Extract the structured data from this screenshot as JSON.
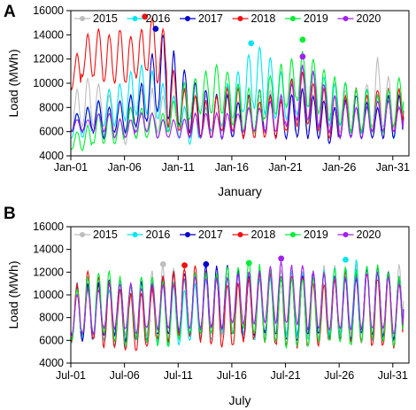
{
  "figure": {
    "colors": {
      "2015": "#bebebe",
      "2016": "#00e5ee",
      "2017": "#0000cd",
      "2018": "#ee1111",
      "2019": "#00ee33",
      "2020": "#a020f0"
    }
  },
  "chart_data": [
    {
      "type": "line",
      "panel_label": "A",
      "title": "",
      "xlabel": "January",
      "ylabel": "Load (MWh)",
      "xlim": [
        0,
        31.5
      ],
      "ylim": [
        4000,
        16000
      ],
      "x_ticks": [
        {
          "value": 0,
          "label": "Jan-01"
        },
        {
          "value": 5,
          "label": "Jan-06"
        },
        {
          "value": 10,
          "label": "Jan-11"
        },
        {
          "value": 15,
          "label": "Jan-16"
        },
        {
          "value": 20,
          "label": "Jan-21"
        },
        {
          "value": 25,
          "label": "Jan-26"
        },
        {
          "value": 30,
          "label": "Jan-31"
        }
      ],
      "y_ticks": [
        4000,
        6000,
        8000,
        10000,
        12000,
        14000,
        16000
      ],
      "grid": false,
      "legend": "top",
      "x_unit": "days since Jan-01 00:00",
      "series": [
        {
          "name": "2015",
          "color_key": "2015",
          "daily_max": [
            9500,
            10500,
            10000,
            9000,
            8500,
            9000,
            9500,
            9500,
            9000,
            9000,
            9500,
            9000,
            9000,
            9000,
            9000,
            8500,
            8500,
            9000,
            9500,
            9000,
            10000,
            9500,
            9000,
            9500,
            10000,
            9500,
            9500,
            10000,
            12000,
            10500,
            9500
          ],
          "daily_min": [
            6000,
            6500,
            6500,
            6000,
            5500,
            5000,
            5500,
            6000,
            6000,
            6000,
            6000,
            5500,
            5500,
            6000,
            6000,
            5500,
            5500,
            6000,
            6000,
            6000,
            6000,
            6000,
            6000,
            6000,
            6500,
            6000,
            6000,
            6000,
            6500,
            6500,
            6000
          ],
          "peak": {
            "x": null,
            "y": null
          }
        },
        {
          "name": "2016",
          "color_key": "2016",
          "daily_max": [
            7500,
            8000,
            8500,
            9500,
            10000,
            11000,
            11500,
            11000,
            10000,
            9000,
            8000,
            7500,
            8000,
            9000,
            10000,
            11000,
            12500,
            13000,
            12000,
            11000,
            10500,
            11500,
            11000,
            10500,
            10000,
            10000,
            9500,
            9500,
            9000,
            9500,
            9000
          ],
          "daily_min": [
            5500,
            5500,
            6000,
            6500,
            6500,
            7000,
            7500,
            7500,
            7000,
            6000,
            5500,
            5000,
            5500,
            6000,
            6500,
            7000,
            7500,
            8000,
            7500,
            7000,
            7000,
            7500,
            7000,
            6500,
            6500,
            6500,
            6000,
            6000,
            6000,
            6000,
            5500
          ],
          "peak": {
            "x": 16.8,
            "y": 13300
          }
        },
        {
          "name": "2017",
          "color_key": "2017",
          "daily_max": [
            7500,
            8000,
            8500,
            8000,
            8500,
            9000,
            10000,
            12500,
            14000,
            12500,
            11000,
            10000,
            9500,
            9000,
            9000,
            8500,
            9000,
            9500,
            9000,
            8500,
            9000,
            9500,
            9000,
            8500,
            8000,
            8500,
            9000,
            8500,
            8000,
            9000,
            9000
          ],
          "daily_min": [
            6000,
            6000,
            6000,
            5500,
            6000,
            6000,
            6500,
            7000,
            7500,
            7000,
            6500,
            6000,
            5500,
            5500,
            5500,
            5500,
            5500,
            6000,
            6000,
            5500,
            5500,
            5500,
            5500,
            5500,
            5000,
            5500,
            5500,
            5500,
            5500,
            5500,
            5500
          ],
          "peak": {
            "x": 7.9,
            "y": 14500
          }
        },
        {
          "name": "2018",
          "color_key": "2018",
          "daily_max": [
            12500,
            14000,
            14500,
            14000,
            14500,
            14000,
            14500,
            15500,
            14500,
            11000,
            9500,
            9000,
            8500,
            9000,
            9500,
            9500,
            9000,
            8500,
            9000,
            8500,
            10500,
            11000,
            10000,
            9500,
            9000,
            9000,
            9500,
            9000,
            9500,
            9500,
            9500
          ],
          "daily_min": [
            9500,
            10500,
            10500,
            10000,
            10000,
            10000,
            10500,
            11000,
            10000,
            6500,
            6000,
            5500,
            5500,
            5500,
            6000,
            6000,
            5500,
            5500,
            5500,
            5500,
            6000,
            6500,
            6500,
            6000,
            5500,
            5500,
            6000,
            6000,
            6000,
            6000,
            6000
          ],
          "peak": {
            "x": 6.9,
            "y": 15500
          }
        },
        {
          "name": "2019",
          "color_key": "2019",
          "daily_max": [
            6000,
            6500,
            7500,
            7500,
            7000,
            8000,
            8000,
            7500,
            7500,
            8500,
            10000,
            10500,
            11000,
            11500,
            11000,
            10000,
            9500,
            9500,
            10500,
            11500,
            12000,
            12500,
            12000,
            11000,
            10500,
            10000,
            9500,
            9500,
            9000,
            9500,
            10500
          ],
          "daily_min": [
            4500,
            4500,
            5000,
            5000,
            5000,
            5500,
            5500,
            5500,
            5500,
            6000,
            6500,
            7000,
            7500,
            7500,
            7500,
            6500,
            6000,
            6000,
            7000,
            7500,
            8000,
            8500,
            8000,
            7500,
            7000,
            6500,
            6000,
            6000,
            6000,
            6000,
            6500
          ],
          "peak": {
            "x": 21.6,
            "y": 13600
          }
        },
        {
          "name": "2020",
          "color_key": "2020",
          "daily_max": [
            7000,
            7000,
            7500,
            7500,
            7000,
            7000,
            7500,
            7500,
            7000,
            7000,
            7000,
            7500,
            7500,
            7500,
            7500,
            7500,
            8000,
            8000,
            8500,
            9000,
            10000,
            11500,
            11000,
            10000,
            9000,
            8500,
            8000,
            8000,
            8500,
            8500,
            8000
          ],
          "daily_min": [
            6000,
            6000,
            6000,
            6000,
            5500,
            5500,
            6000,
            6000,
            5500,
            5500,
            5500,
            5500,
            5500,
            5500,
            5500,
            6000,
            6000,
            6000,
            6000,
            6000,
            6500,
            7000,
            7000,
            6500,
            6000,
            5500,
            5500,
            5500,
            6000,
            6000,
            6000
          ],
          "peak": {
            "x": 21.6,
            "y": 12200
          }
        }
      ]
    },
    {
      "type": "line",
      "panel_label": "B",
      "title": "",
      "xlabel": "July",
      "ylabel": "Load (MWh)",
      "xlim": [
        0,
        31.5
      ],
      "ylim": [
        4000,
        16000
      ],
      "x_ticks": [
        {
          "value": 0,
          "label": "Jul-01"
        },
        {
          "value": 5,
          "label": "Jul-06"
        },
        {
          "value": 10,
          "label": "Jul-11"
        },
        {
          "value": 15,
          "label": "Jul-16"
        },
        {
          "value": 20,
          "label": "Jul-21"
        },
        {
          "value": 25,
          "label": "Jul-26"
        },
        {
          "value": 30,
          "label": "Jul-31"
        }
      ],
      "y_ticks": [
        4000,
        6000,
        8000,
        10000,
        12000,
        14000,
        16000
      ],
      "grid": false,
      "legend": "top",
      "x_unit": "days since Jul-01 00:00",
      "series": [
        {
          "name": "2015",
          "color_key": "2015",
          "daily_max": [
            11000,
            11500,
            11500,
            11000,
            10500,
            11000,
            11500,
            12000,
            12500,
            12500,
            12000,
            11500,
            11500,
            11500,
            12000,
            12000,
            11500,
            11500,
            11500,
            12000,
            12000,
            12000,
            12000,
            12500,
            12500,
            12500,
            12500,
            12500,
            12500,
            12000,
            12500
          ],
          "daily_min": [
            6000,
            6500,
            6500,
            6500,
            6500,
            6500,
            6500,
            6500,
            7000,
            7000,
            6500,
            6500,
            6500,
            6500,
            6500,
            6500,
            6500,
            6500,
            6500,
            6500,
            6500,
            6500,
            6500,
            6500,
            6500,
            6500,
            6500,
            6500,
            6500,
            6500,
            6500
          ],
          "peak": {
            "x": 8.6,
            "y": 12700
          }
        },
        {
          "name": "2016",
          "color_key": "2016",
          "daily_max": [
            11000,
            11500,
            11000,
            10500,
            10500,
            11000,
            11000,
            11500,
            11000,
            11000,
            10500,
            11000,
            11500,
            11500,
            11500,
            12000,
            12000,
            11500,
            11500,
            11500,
            12000,
            12000,
            11500,
            12000,
            12500,
            12500,
            13000,
            12500,
            12000,
            12000,
            11500
          ],
          "daily_min": [
            6000,
            6000,
            6000,
            6000,
            5500,
            5500,
            6000,
            6000,
            6000,
            5500,
            5500,
            6000,
            6000,
            6000,
            6500,
            6500,
            6500,
            6000,
            6000,
            6000,
            6500,
            6500,
            6000,
            6000,
            6500,
            6500,
            7000,
            6500,
            6000,
            6000,
            5500
          ],
          "peak": {
            "x": 25.6,
            "y": 13100
          }
        },
        {
          "name": "2017",
          "color_key": "2017",
          "daily_max": [
            10500,
            11000,
            11000,
            11500,
            11500,
            11000,
            11000,
            11000,
            11500,
            12000,
            12000,
            12000,
            12500,
            12500,
            12500,
            12000,
            11500,
            12000,
            12000,
            11500,
            11500,
            11500,
            12000,
            12000,
            11500,
            11500,
            11500,
            12500,
            12500,
            12000,
            11500
          ],
          "daily_min": [
            6000,
            6000,
            6000,
            6500,
            6500,
            6000,
            6000,
            6000,
            6500,
            6500,
            6500,
            6500,
            7000,
            7000,
            7000,
            6500,
            6000,
            6500,
            6500,
            6500,
            6000,
            6000,
            6500,
            6500,
            6000,
            6000,
            6000,
            6500,
            6500,
            6500,
            6000
          ],
          "peak": {
            "x": 12.6,
            "y": 12700
          }
        },
        {
          "name": "2018",
          "color_key": "2018",
          "daily_max": [
            11000,
            12000,
            11500,
            11000,
            10500,
            10000,
            10000,
            10500,
            11500,
            12000,
            12500,
            12500,
            12000,
            11500,
            11000,
            11000,
            11500,
            12000,
            12000,
            11500,
            11500,
            11500,
            11000,
            11000,
            11500,
            12000,
            12000,
            12000,
            11500,
            11500,
            11000
          ],
          "daily_min": [
            6000,
            6500,
            6000,
            5500,
            5500,
            5000,
            5000,
            5500,
            6000,
            6000,
            6500,
            6500,
            6000,
            5500,
            5500,
            5500,
            6000,
            6000,
            6000,
            5500,
            5500,
            5500,
            5500,
            5500,
            6000,
            6000,
            6000,
            6000,
            5500,
            5500,
            5500
          ],
          "peak": {
            "x": 10.6,
            "y": 12600
          }
        },
        {
          "name": "2019",
          "color_key": "2019",
          "daily_max": [
            10500,
            11500,
            12000,
            12000,
            11500,
            11000,
            11500,
            11500,
            11000,
            11000,
            11500,
            12000,
            12000,
            12000,
            12500,
            12500,
            13000,
            12500,
            12000,
            11500,
            11500,
            11500,
            11500,
            12000,
            12500,
            12500,
            12000,
            12500,
            12500,
            12000,
            11500
          ],
          "daily_min": [
            6000,
            6500,
            6500,
            6500,
            6000,
            5500,
            6000,
            6000,
            5500,
            5500,
            6000,
            6500,
            6500,
            6500,
            7000,
            6500,
            7000,
            6500,
            6000,
            6000,
            5500,
            5500,
            5500,
            6000,
            6000,
            6000,
            5500,
            6000,
            6000,
            6000,
            5500
          ],
          "peak": {
            "x": 16.6,
            "y": 12800
          }
        },
        {
          "name": "2020",
          "color_key": "2020",
          "daily_max": [
            10000,
            10500,
            10500,
            11000,
            11000,
            11000,
            10500,
            11000,
            11000,
            11000,
            11500,
            11500,
            11500,
            11500,
            11500,
            12000,
            12000,
            12000,
            12500,
            13000,
            12500,
            12500,
            12000,
            12000,
            11500,
            11500,
            11500,
            12000,
            12000,
            11500,
            11000
          ],
          "daily_min": [
            6500,
            6500,
            6500,
            7000,
            7000,
            7000,
            6500,
            7000,
            7000,
            7000,
            7000,
            7000,
            7000,
            7000,
            7000,
            7500,
            7500,
            7500,
            7500,
            7500,
            7500,
            7500,
            7000,
            7000,
            7000,
            7000,
            7000,
            7000,
            7000,
            7000,
            6500
          ],
          "peak": {
            "x": 19.6,
            "y": 13200
          }
        }
      ]
    }
  ]
}
